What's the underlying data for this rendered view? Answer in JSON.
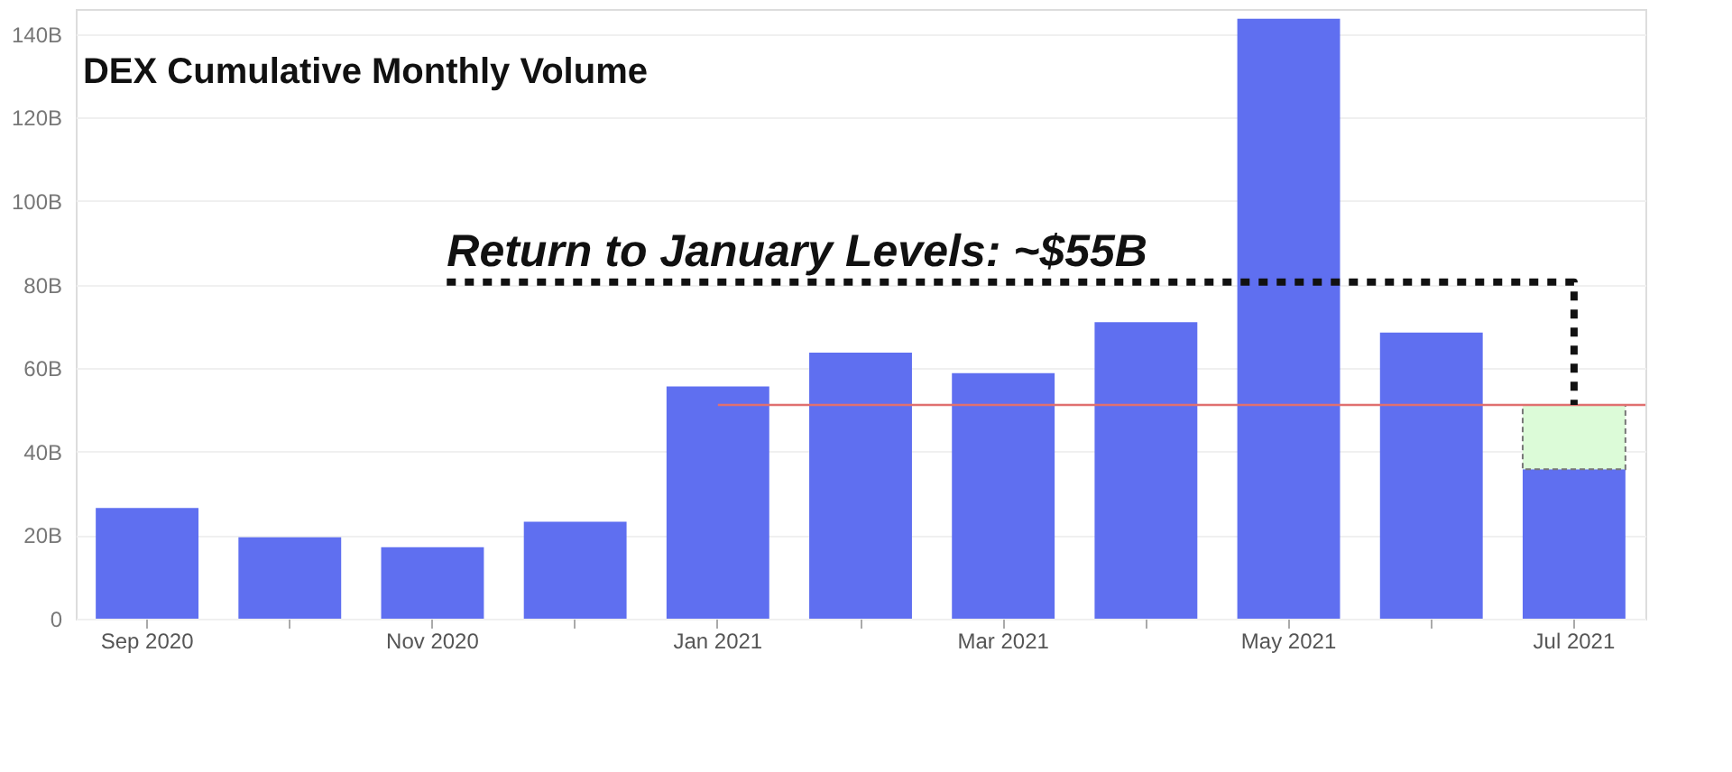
{
  "chart_data": {
    "type": "bar",
    "title": "DEX Cumulative Monthly Volume",
    "categories": [
      "Sep 2020",
      null,
      "Nov 2020",
      null,
      "Jan 2021",
      null,
      "Mar 2021",
      null,
      "May 2021",
      null,
      "Jul 2021"
    ],
    "stacked": true,
    "series": [
      {
        "color": "#5f6ff0",
        "values": [
          26.5,
          19.5,
          17.1,
          23.2,
          55.6,
          63.7,
          58.8,
          71.0,
          143.7,
          68.5,
          35.8
        ]
      },
      {
        "color": "#dcfbd8",
        "values": [
          null,
          null,
          null,
          null,
          null,
          null,
          null,
          null,
          null,
          null,
          15.4
        ]
      }
    ],
    "ylim": [
      0,
      146
    ],
    "yticks": [
      0,
      {
        "value": 20,
        "label": "20B"
      },
      {
        "value": 40,
        "label": "40B"
      },
      {
        "value": 60,
        "label": "60B"
      },
      {
        "value": 80,
        "label": "80B"
      },
      {
        "value": 100,
        "label": "100B"
      },
      {
        "value": 120,
        "label": "120B"
      },
      {
        "value": 140,
        "label": "140B"
      }
    ],
    "grid": "y",
    "ref_lines": [
      {
        "axis": "y",
        "value": 51.2,
        "color": "#e07070"
      },
      {
        "axis": "y",
        "value": 80.6,
        "label": "Return to January Levels: ~$55B",
        "color": "#111111",
        "line_style": "dotted"
      }
    ]
  }
}
